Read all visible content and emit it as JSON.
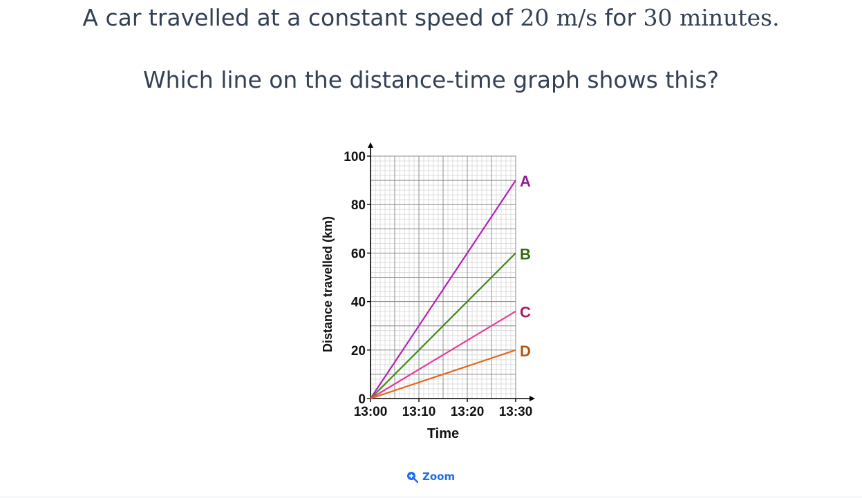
{
  "question": {
    "line1_text_a": "A car travelled at a constant speed of ",
    "line1_math_speed": "20 m/s",
    "line1_text_b": " for ",
    "line1_math_time": "30 minutes.",
    "line2": "Which line on the distance-time graph shows this?"
  },
  "zoom": {
    "label": "Zoom",
    "icon": "zoom-in-icon",
    "color": "#1d6ef0"
  },
  "chart_data": {
    "type": "line",
    "xlabel": "Time",
    "ylabel": "Distance travelled (km)",
    "x_ticks": [
      "13:00",
      "13:10",
      "13:20",
      "13:30"
    ],
    "x_range_minutes": [
      0,
      30
    ],
    "y_ticks": [
      "0",
      "20",
      "40",
      "60",
      "80",
      "100"
    ],
    "ylim": [
      0,
      100
    ],
    "grid": true,
    "series": [
      {
        "name": "A",
        "color": "#b321b8",
        "x": [
          0,
          30
        ],
        "y": [
          0,
          90
        ]
      },
      {
        "name": "B",
        "color": "#3d8a12",
        "x": [
          0,
          30
        ],
        "y": [
          0,
          60
        ]
      },
      {
        "name": "C",
        "color": "#e83d9a",
        "x": [
          0,
          30
        ],
        "y": [
          0,
          36
        ]
      },
      {
        "name": "D",
        "color": "#e06a1c",
        "x": [
          0,
          30
        ],
        "y": [
          0,
          20
        ]
      }
    ],
    "label_colors": {
      "A": "#8e1f8f",
      "B": "#2f6b0f",
      "C": "#b0155f",
      "D": "#b8520f"
    }
  }
}
